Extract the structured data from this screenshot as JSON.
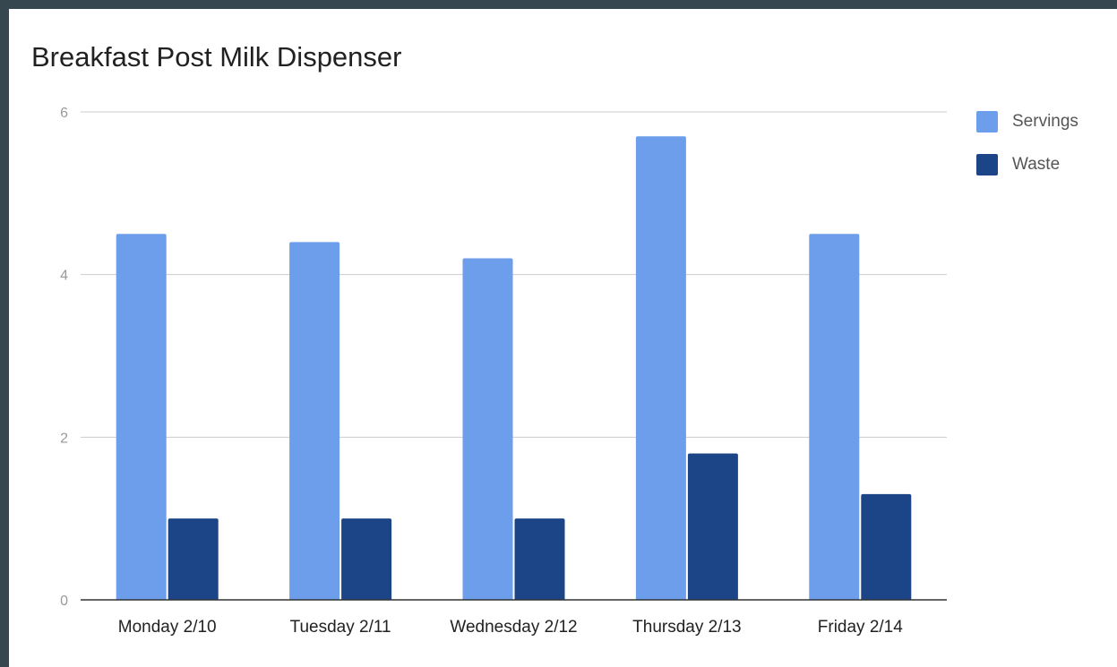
{
  "colors": {
    "frame": "#37474f",
    "background": "#ffffff",
    "servings": "#6d9eeb",
    "waste": "#1c4587",
    "grid": "#cccccc",
    "axis": "#333333"
  },
  "chart_data": {
    "type": "bar",
    "title": "Breakfast Post Milk Dispenser",
    "xlabel": "",
    "ylabel": "",
    "categories": [
      "Monday 2/10",
      "Tuesday 2/11",
      "Wednesday 2/12",
      "Thursday 2/13",
      "Friday 2/14"
    ],
    "series": [
      {
        "name": "Servings",
        "values": [
          4.5,
          4.4,
          4.2,
          5.7,
          4.5
        ]
      },
      {
        "name": "Waste",
        "values": [
          1.0,
          1.0,
          1.0,
          1.8,
          1.3
        ]
      }
    ],
    "ylim": [
      0,
      6
    ],
    "yticks": [
      0,
      2,
      4,
      6
    ],
    "grid": true,
    "legend_position": "right"
  }
}
